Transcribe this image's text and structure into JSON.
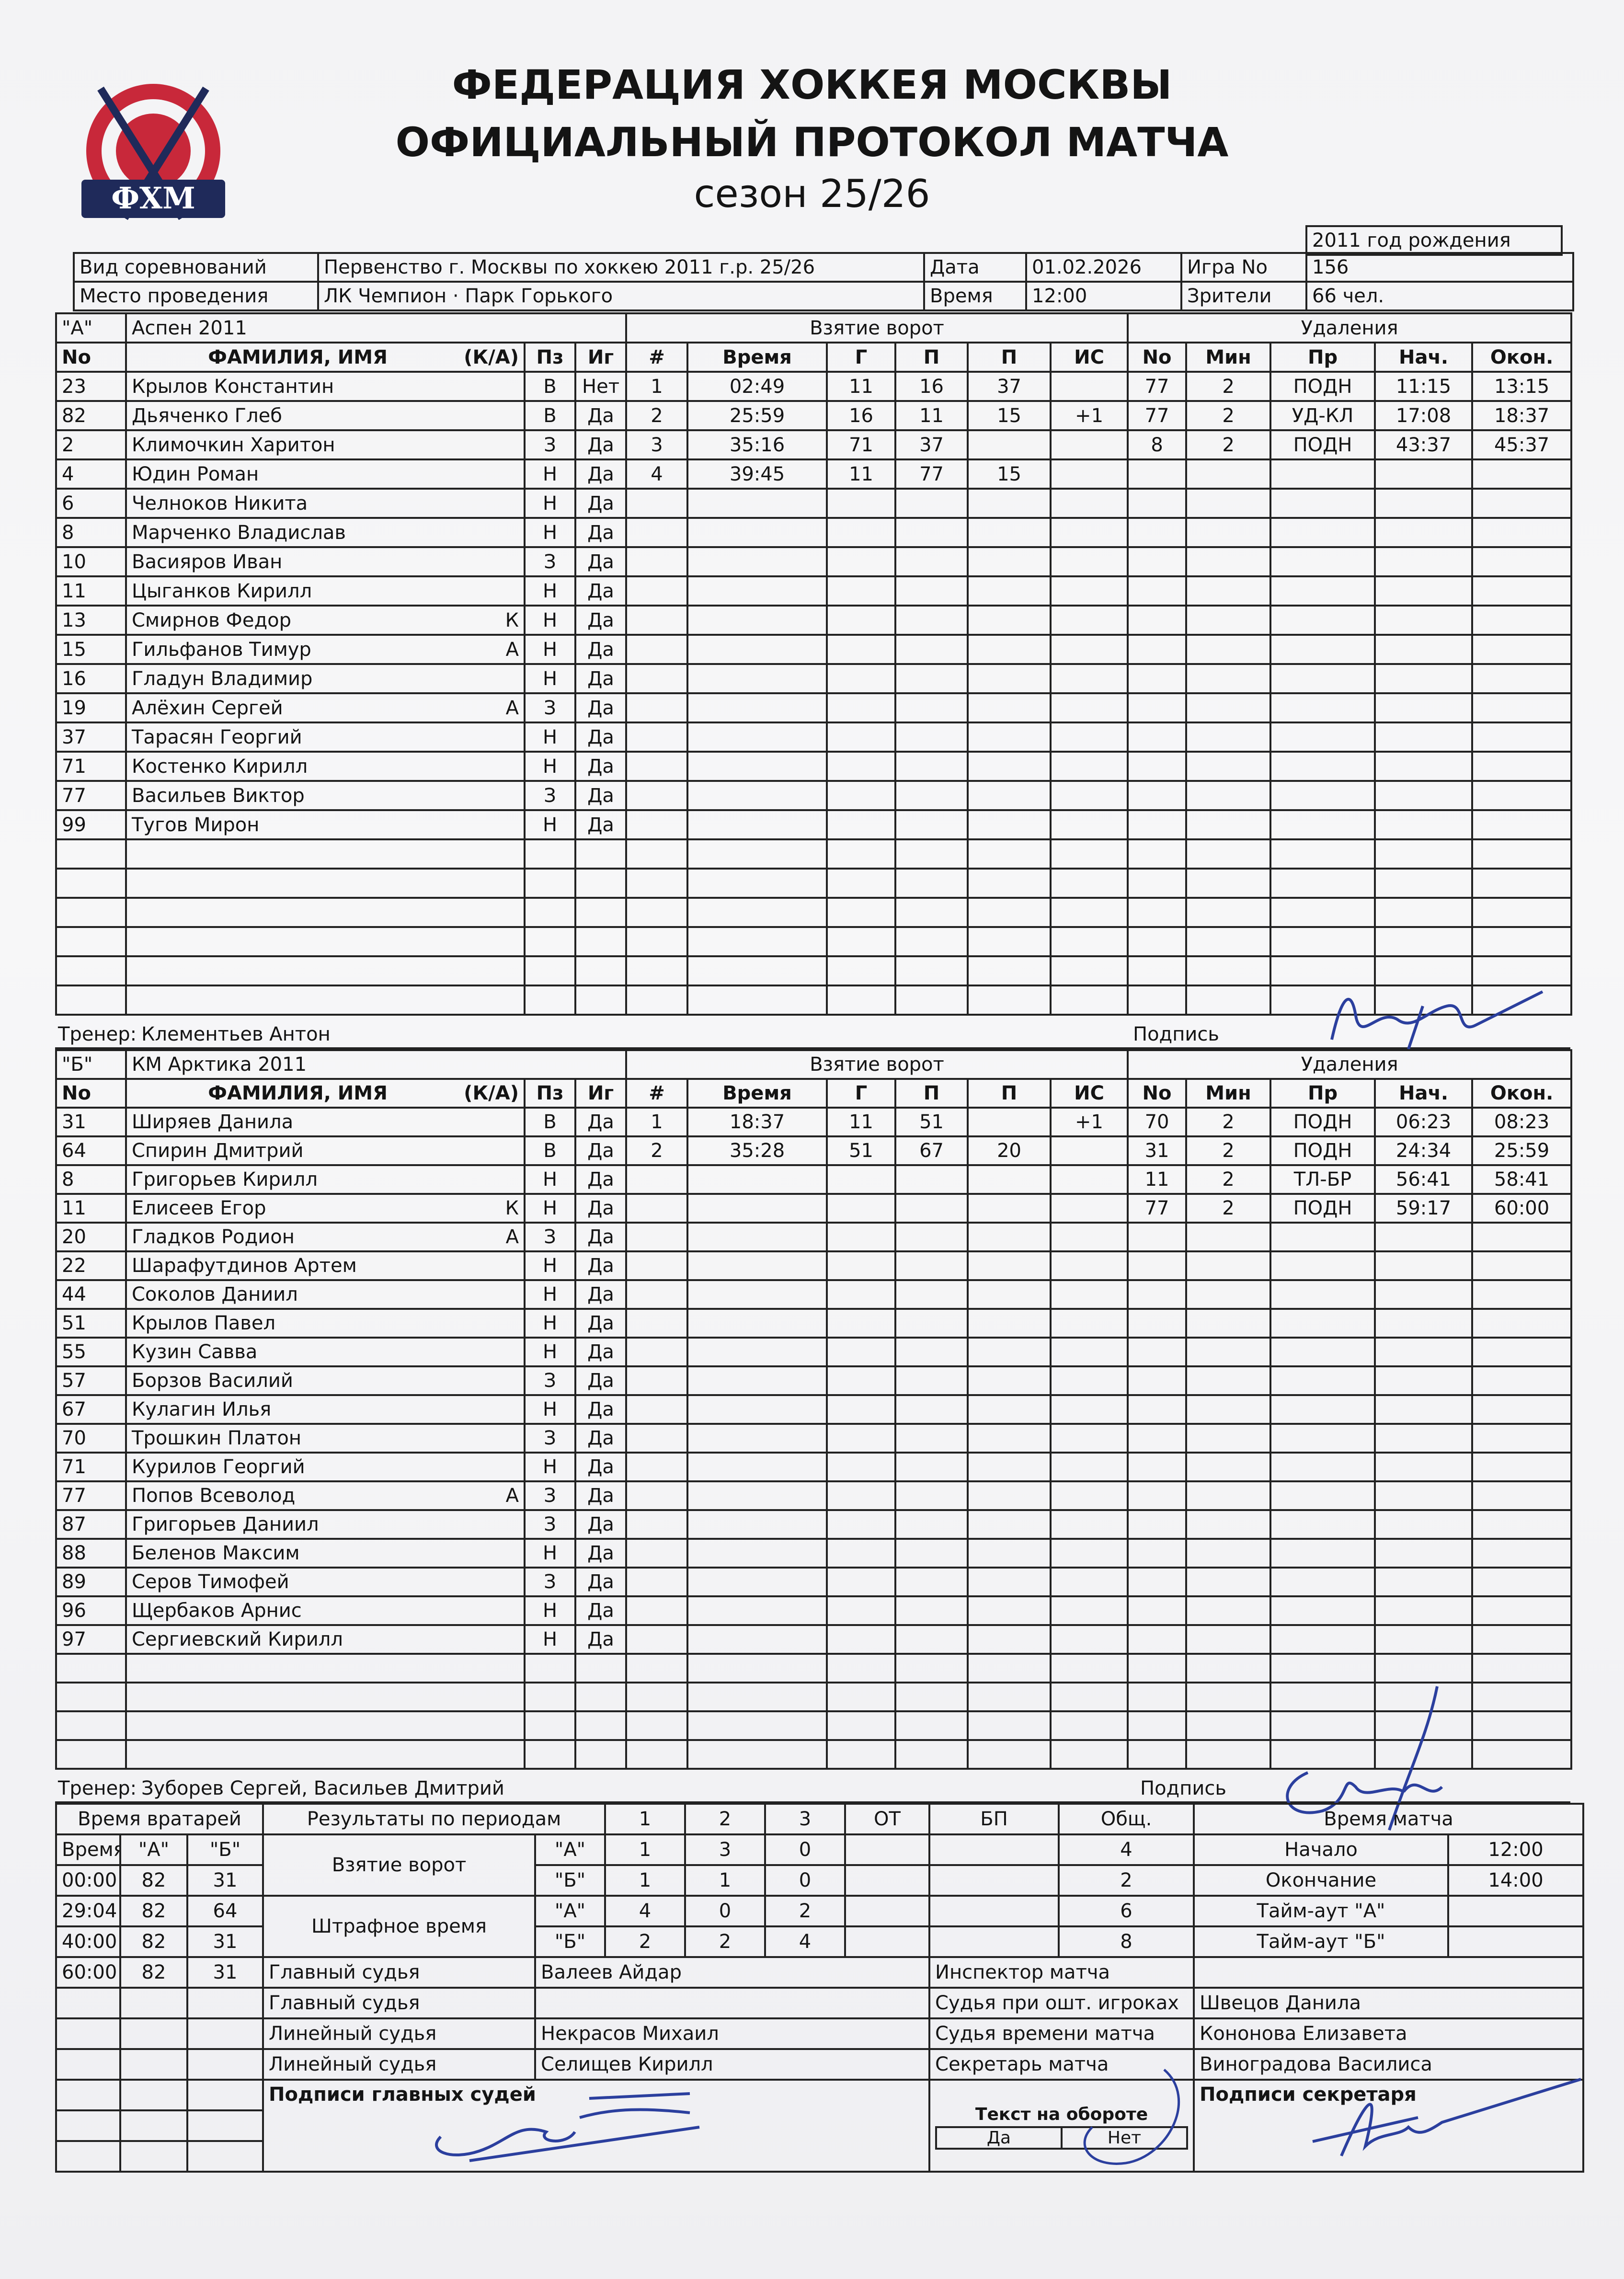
{
  "header": {
    "logo_text": "ФХМ",
    "line1": "ФЕДЕРАЦИЯ ХОККЕЯ МОСКВЫ",
    "line2": "ОФИЦИАЛЬНЫЙ ПРОТОКОЛ МАТЧА",
    "line3": "сезон 25/26",
    "birth_year": "2011 год рождения"
  },
  "info": {
    "competition_label": "Вид соревнований",
    "competition": "Первенство г. Москвы по хоккею 2011 г.р. 25/26",
    "date_label": "Дата",
    "date": "01.02.2026",
    "game_label": "Игра No",
    "game": "156",
    "venue_label": "Место проведения",
    "venue": "ЛК Чемпион · Парк Горького",
    "time_label": "Время",
    "time": "12:00",
    "spectators_label": "Зрители",
    "spectators": "66 чел."
  },
  "columns": {
    "no": "No",
    "name": "ФАМИЛИЯ, ИМЯ",
    "ka": "(К/А)",
    "pos": "Пз",
    "plays": "Иг",
    "goals_title": "Взятие ворот",
    "num": "#",
    "time": "Время",
    "g": "Г",
    "a1": "П",
    "a2": "П",
    "is": "ИС",
    "pen_title": "Удаления",
    "pen_no": "No",
    "min": "Мин",
    "reason": "Пр",
    "start": "Нач.",
    "end": "Окон."
  },
  "team_a": {
    "letter": "\"А\"",
    "name": "Аспен 2011",
    "coach_label": "Тренер:",
    "coach": "Клементьев Антон",
    "sign_label": "Подпись",
    "players": [
      [
        "23",
        "Крылов Константин",
        "",
        "В",
        "Нет"
      ],
      [
        "82",
        "Дьяченко Глеб",
        "",
        "В",
        "Да"
      ],
      [
        "2",
        "Климочкин Харитон",
        "",
        "З",
        "Да"
      ],
      [
        "4",
        "Юдин Роман",
        "",
        "Н",
        "Да"
      ],
      [
        "6",
        "Челноков Никита",
        "",
        "Н",
        "Да"
      ],
      [
        "8",
        "Марченко Владислав",
        "",
        "Н",
        "Да"
      ],
      [
        "10",
        "Васияров Иван",
        "",
        "З",
        "Да"
      ],
      [
        "11",
        "Цыганков Кирилл",
        "",
        "Н",
        "Да"
      ],
      [
        "13",
        "Смирнов Федор",
        "К",
        "Н",
        "Да"
      ],
      [
        "15",
        "Гильфанов Тимур",
        "А",
        "Н",
        "Да"
      ],
      [
        "16",
        "Гладун Владимир",
        "",
        "Н",
        "Да"
      ],
      [
        "19",
        "Алёхин Сергей",
        "А",
        "З",
        "Да"
      ],
      [
        "37",
        "Тарасян Георгий",
        "",
        "Н",
        "Да"
      ],
      [
        "71",
        "Костенко Кирилл",
        "",
        "Н",
        "Да"
      ],
      [
        "77",
        "Васильев Виктор",
        "",
        "З",
        "Да"
      ],
      [
        "99",
        "Тугов Мирон",
        "",
        "Н",
        "Да"
      ]
    ],
    "goals": [
      [
        "1",
        "02:49",
        "11",
        "16",
        "37",
        ""
      ],
      [
        "2",
        "25:59",
        "16",
        "11",
        "15",
        "+1"
      ],
      [
        "3",
        "35:16",
        "71",
        "37",
        "",
        ""
      ],
      [
        "4",
        "39:45",
        "11",
        "77",
        "15",
        ""
      ]
    ],
    "penalties": [
      [
        "77",
        "2",
        "ПОДН",
        "11:15",
        "13:15"
      ],
      [
        "77",
        "2",
        "УД-КЛ",
        "17:08",
        "18:37"
      ],
      [
        "8",
        "2",
        "ПОДН",
        "43:37",
        "45:37"
      ]
    ]
  },
  "team_b": {
    "letter": "\"Б\"",
    "name": "КМ Арктика 2011",
    "coach_label": "Тренер:",
    "coach": "Зуборев Сергей, Васильев Дмитрий",
    "sign_label": "Подпись",
    "players": [
      [
        "31",
        "Ширяев Данила",
        "",
        "В",
        "Да"
      ],
      [
        "64",
        "Спирин Дмитрий",
        "",
        "В",
        "Да"
      ],
      [
        "8",
        "Григорьев Кирилл",
        "",
        "Н",
        "Да"
      ],
      [
        "11",
        "Елисеев Егор",
        "К",
        "Н",
        "Да"
      ],
      [
        "20",
        "Гладков Родион",
        "А",
        "З",
        "Да"
      ],
      [
        "22",
        "Шарафутдинов Артем",
        "",
        "Н",
        "Да"
      ],
      [
        "44",
        "Соколов Даниил",
        "",
        "Н",
        "Да"
      ],
      [
        "51",
        "Крылов Павел",
        "",
        "Н",
        "Да"
      ],
      [
        "55",
        "Кузин Савва",
        "",
        "Н",
        "Да"
      ],
      [
        "57",
        "Борзов Василий",
        "",
        "З",
        "Да"
      ],
      [
        "67",
        "Кулагин Илья",
        "",
        "Н",
        "Да"
      ],
      [
        "70",
        "Трошкин Платон",
        "",
        "З",
        "Да"
      ],
      [
        "71",
        "Курилов Георгий",
        "",
        "Н",
        "Да"
      ],
      [
        "77",
        "Попов Всеволод",
        "А",
        "З",
        "Да"
      ],
      [
        "87",
        "Григорьев Даниил",
        "",
        "З",
        "Да"
      ],
      [
        "88",
        "Беленов Максим",
        "",
        "Н",
        "Да"
      ],
      [
        "89",
        "Серов Тимофей",
        "",
        "З",
        "Да"
      ],
      [
        "96",
        "Щербаков Арнис",
        "",
        "Н",
        "Да"
      ],
      [
        "97",
        "Сергиевский Кирилл",
        "",
        "Н",
        "Да"
      ]
    ],
    "goals": [
      [
        "1",
        "18:37",
        "11",
        "51",
        "",
        "+1"
      ],
      [
        "2",
        "35:28",
        "51",
        "67",
        "20",
        ""
      ]
    ],
    "penalties": [
      [
        "70",
        "2",
        "ПОДН",
        "06:23",
        "08:23"
      ],
      [
        "31",
        "2",
        "ПОДН",
        "24:34",
        "25:59"
      ],
      [
        "11",
        "2",
        "ТЛ-БР",
        "56:41",
        "58:41"
      ],
      [
        "77",
        "2",
        "ПОДН",
        "59:17",
        "60:00"
      ]
    ]
  },
  "summary": {
    "goalie_title": "Время вратарей",
    "goalie_cols": [
      "Время",
      "\"А\"",
      "\"Б\""
    ],
    "goalie_rows": [
      [
        "00:00",
        "82",
        "31"
      ],
      [
        "29:04",
        "82",
        "64"
      ],
      [
        "40:00",
        "82",
        "31"
      ],
      [
        "60:00",
        "82",
        "31"
      ]
    ],
    "results_title": "Результаты по периодам",
    "period_cols": [
      "1",
      "2",
      "3",
      "ОТ",
      "БП",
      "Общ."
    ],
    "goals_label": "Взятие ворот",
    "pim_label": "Штрафное время",
    "team_a_tag": "\"А\"",
    "team_b_tag": "\"Б\"",
    "goals_a": [
      "1",
      "3",
      "0",
      "",
      "",
      "4"
    ],
    "goals_b": [
      "1",
      "1",
      "0",
      "",
      "",
      "2"
    ],
    "pim_a": [
      "4",
      "0",
      "2",
      "",
      "",
      "6"
    ],
    "pim_b": [
      "2",
      "2",
      "4",
      "",
      "",
      "8"
    ],
    "match_time_title": "Время матча",
    "start_label": "Начало",
    "start": "12:00",
    "end_label": "Окончание",
    "end": "14:00",
    "timeout_a_label": "Тайм-аут \"А\"",
    "timeout_a": "",
    "timeout_b_label": "Тайм-аут \"Б\"",
    "timeout_b": ""
  },
  "officials": {
    "referee1_label": "Главный судья",
    "referee1": "Валеев Айдар",
    "referee2_label": "Главный судья",
    "referee2": "",
    "linesman1_label": "Линейный судья",
    "linesman1": "Некрасов Михаил",
    "linesman2_label": "Линейный судья",
    "linesman2": "Селищев Кирилл",
    "inspector_label": "Инспектор матча",
    "inspector": "",
    "penalty_box_label": "Судья при ошт. игроках",
    "penalty_box": "Швецов Данила",
    "timekeeper_label": "Судья времени матча",
    "timekeeper": "Кононова Елизавета",
    "secretary_label": "Секретарь матча",
    "secretary": "Виноградова Василиса",
    "ref_signatures_label": "Подписи главных судей",
    "reverse_text_label": "Текст на обороте",
    "reverse_yes": "Да",
    "reverse_no": "Нет",
    "reverse_selected": "Нет",
    "secretary_signature_label": "Подписи секретаря"
  },
  "colors": {
    "ink": "#141414",
    "signature": "#2b3f9e",
    "logo_red": "#c8283a",
    "logo_navy": "#1f2a5a"
  }
}
